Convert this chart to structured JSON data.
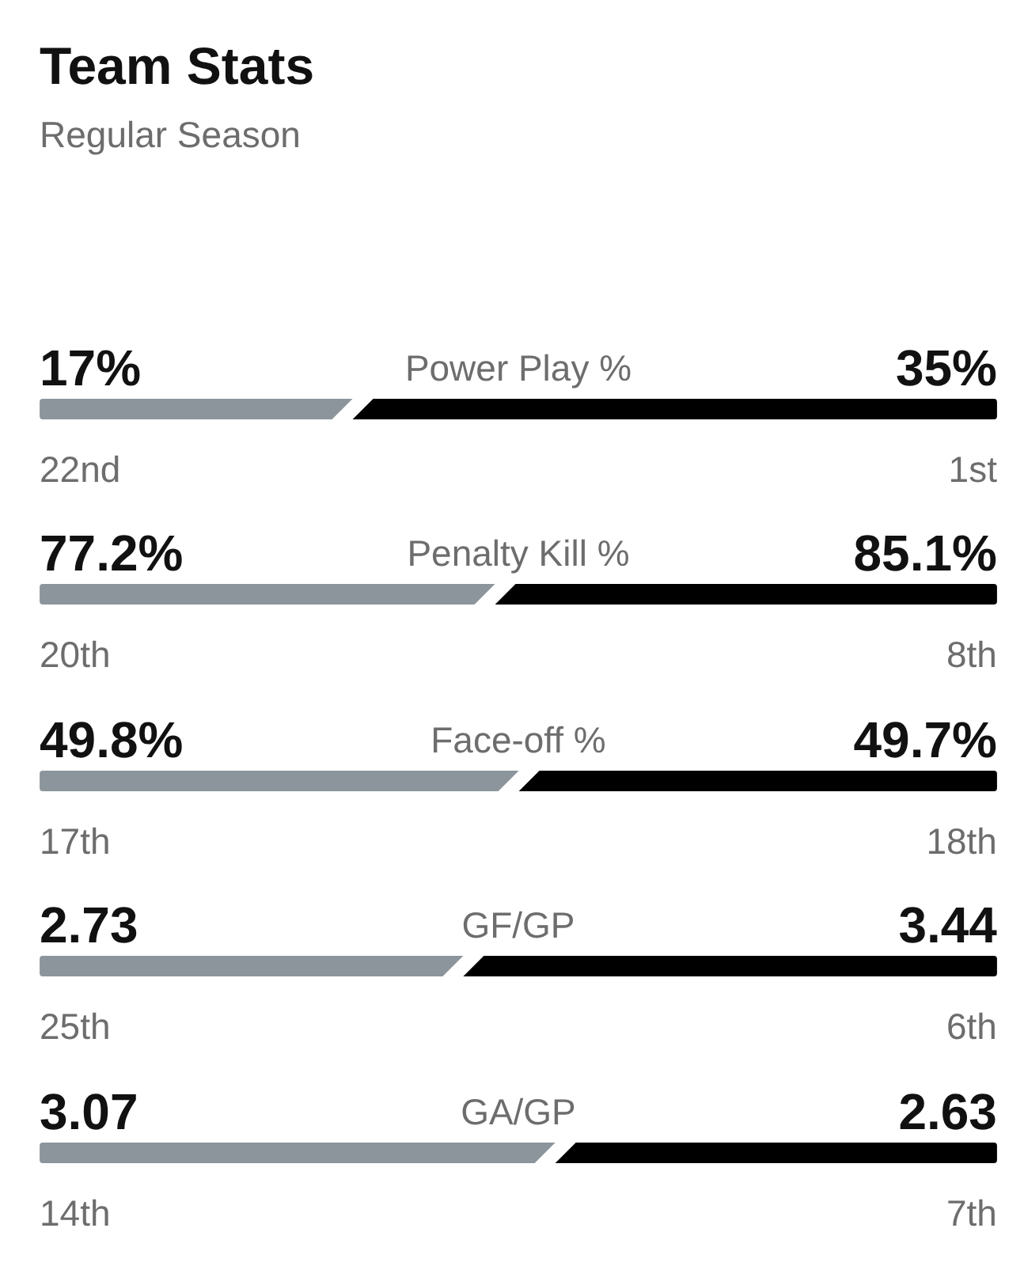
{
  "chart_data": [
    {
      "type": "bar",
      "title": "Team Stats",
      "subtitle": "Regular Season",
      "orientation": "horizontal",
      "stacked": true,
      "tick_labels": "y",
      "categories": [
        "Power Play %"
      ],
      "series": [
        {
          "color": "#8b959b",
          "values": [
            17
          ],
          "value_labels": [
            "17%"
          ]
        },
        {
          "color": "#000000",
          "values": [
            35
          ],
          "value_labels": [
            "35%"
          ]
        }
      ],
      "annotations": [
        "22nd",
        "1st"
      ]
    },
    {
      "type": "bar",
      "orientation": "horizontal",
      "stacked": true,
      "tick_labels": "y",
      "categories": [
        "Penalty Kill %"
      ],
      "series": [
        {
          "color": "#8b959b",
          "values": [
            77.2
          ],
          "value_labels": [
            "77.2%"
          ]
        },
        {
          "color": "#000000",
          "values": [
            85.1
          ],
          "value_labels": [
            "85.1%"
          ]
        }
      ],
      "annotations": [
        "20th",
        "8th"
      ]
    },
    {
      "type": "bar",
      "orientation": "horizontal",
      "stacked": true,
      "tick_labels": "y",
      "categories": [
        "Face-off %"
      ],
      "series": [
        {
          "color": "#8b959b",
          "values": [
            49.8
          ],
          "value_labels": [
            "49.8%"
          ]
        },
        {
          "color": "#000000",
          "values": [
            49.7
          ],
          "value_labels": [
            "49.7%"
          ]
        }
      ],
      "annotations": [
        "17th",
        "18th"
      ]
    },
    {
      "type": "bar",
      "orientation": "horizontal",
      "stacked": true,
      "tick_labels": "y",
      "categories": [
        "GF/GP"
      ],
      "series": [
        {
          "color": "#8b959b",
          "values": [
            2.73
          ],
          "value_labels": [
            "2.73"
          ]
        },
        {
          "color": "#000000",
          "values": [
            3.44
          ],
          "value_labels": [
            "3.44"
          ]
        }
      ],
      "annotations": [
        "25th",
        "6th"
      ]
    },
    {
      "type": "bar",
      "orientation": "horizontal",
      "stacked": true,
      "tick_labels": "y",
      "categories": [
        "GA/GP"
      ],
      "series": [
        {
          "color": "#8b959b",
          "values": [
            3.07
          ],
          "value_labels": [
            "3.07"
          ]
        },
        {
          "color": "#000000",
          "values": [
            2.63
          ],
          "value_labels": [
            "2.63"
          ]
        }
      ],
      "annotations": [
        "14th",
        "7th"
      ]
    }
  ]
}
